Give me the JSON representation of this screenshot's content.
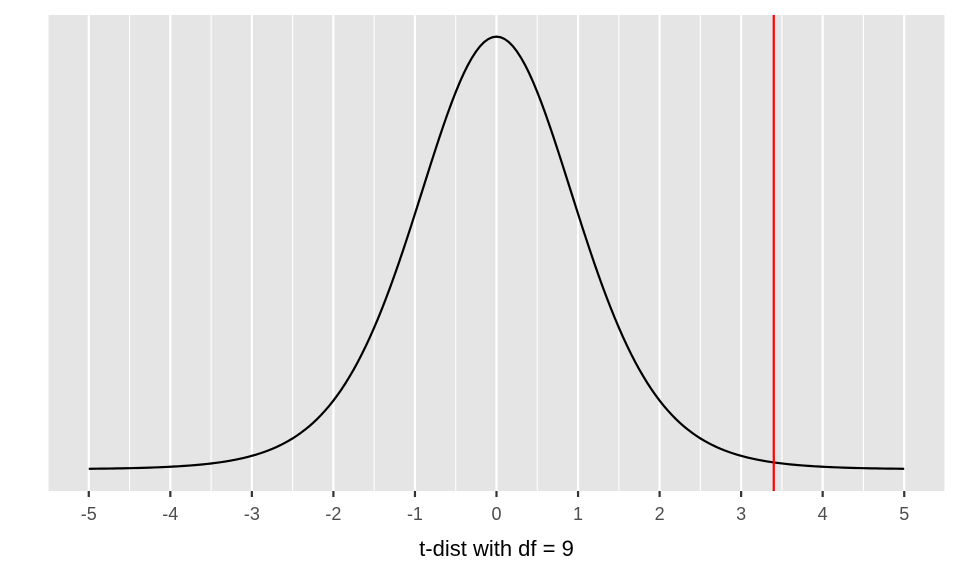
{
  "chart_data": {
    "type": "line",
    "title": "",
    "xlabel": "t-dist with df = 9",
    "ylabel": "",
    "distribution": "Student t",
    "df": 9,
    "xlim": [
      -5,
      5
    ],
    "x_ticks": [
      -5,
      -4,
      -3,
      -2,
      -1,
      0,
      1,
      2,
      3,
      4,
      5
    ],
    "x_tick_labels": [
      "-5",
      "-4",
      "-3",
      "-2",
      "-1",
      "0",
      "1",
      "2",
      "3",
      "4",
      "5"
    ],
    "y_axis_visible": false,
    "grid": "vertical only",
    "vline": {
      "x": 3.4,
      "color": "#ff0000"
    },
    "line_color": "#000000",
    "panel_background": "#e5e5e5"
  }
}
